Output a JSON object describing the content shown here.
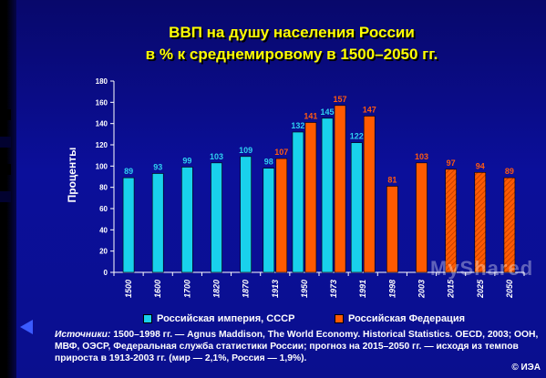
{
  "title": {
    "line1": "ВВП на душу населения России",
    "line2": "в % к среднемировому в 1500–2050 гг."
  },
  "colors": {
    "ussr": "#19d1ec",
    "rf": "#ff5a00",
    "axis": "#ffffff",
    "label_ussr": "#2fd0f0",
    "label_rf": "#ff5a10"
  },
  "chart_data": {
    "type": "bar",
    "ylabel": "Проценты",
    "ylim": [
      0,
      180
    ],
    "yticks": [
      0,
      20,
      40,
      60,
      80,
      100,
      120,
      140,
      160,
      180
    ],
    "categories": [
      "1500",
      "1600",
      "1700",
      "1820",
      "1870",
      "1913",
      "1950",
      "1973",
      "1991",
      "1998",
      "2003",
      "2015",
      "2025",
      "2050"
    ],
    "series": [
      {
        "name": "Российская империя, СССР",
        "color": "#19d1ec",
        "values": [
          89,
          93,
          99,
          103,
          109,
          98,
          132,
          145,
          122,
          null,
          null,
          null,
          null,
          null
        ]
      },
      {
        "name": "Российская Федерация",
        "color": "#ff5a00",
        "values": [
          null,
          null,
          null,
          null,
          null,
          107,
          141,
          157,
          147,
          81,
          103,
          97,
          94,
          89
        ],
        "forecast_from": "2015"
      }
    ]
  },
  "legend": {
    "ussr": "Российская империя, СССР",
    "rf": "Российская Федерация"
  },
  "sources": {
    "label": "Источники:",
    "text": " 1500–1998 гг. — Agnus Maddison, The World Economy. Historical Statistics. OECD, 2003; ООН, МВФ, ОЭСР, Федеральная служба статистики России; прогноз на 2015–2050 гг. — исходя из темпов прироста в 1913-2003 гг. (мир — 2,1%, Россия — 1,9%)."
  },
  "copyright": "© ИЭА",
  "watermark": "MyShared"
}
